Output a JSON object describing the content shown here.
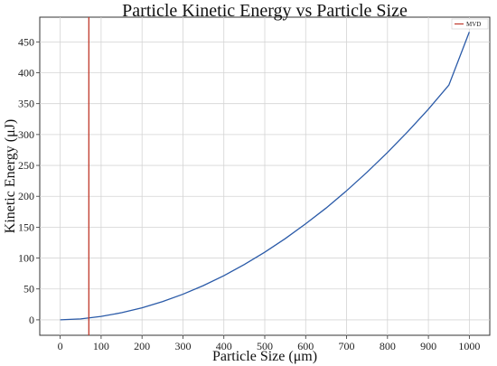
{
  "chart_data": {
    "type": "line",
    "title": "Particle Kinetic Energy vs Particle Size",
    "xlabel": "Particle Size (μm)",
    "ylabel": "Kinetic Energy (μJ)",
    "xlim": [
      -50,
      1050
    ],
    "ylim": [
      -25,
      490
    ],
    "x_ticks": [
      0,
      100,
      200,
      300,
      400,
      500,
      600,
      700,
      800,
      900,
      1000
    ],
    "y_ticks": [
      0,
      50,
      100,
      150,
      200,
      250,
      300,
      350,
      400,
      450
    ],
    "grid": true,
    "series": [
      {
        "color": "#2a5aa8",
        "x": [
          0,
          50,
          100,
          150,
          200,
          250,
          300,
          350,
          400,
          450,
          500,
          550,
          600,
          650,
          700,
          750,
          800,
          850,
          900,
          950,
          1000
        ],
        "y": [
          0,
          1.5,
          5.5,
          11.5,
          19.5,
          29.5,
          41.5,
          55.5,
          71.5,
          89.5,
          109.5,
          131.5,
          155.5,
          181,
          209,
          239,
          271,
          305,
          341,
          380,
          466
        ]
      }
    ],
    "reference_lines": [
      {
        "name": "MVD",
        "axis": "x",
        "value": 70,
        "color": "#c0392b"
      }
    ],
    "legend": {
      "entries": [
        "MVD"
      ],
      "position": "top-right"
    }
  }
}
